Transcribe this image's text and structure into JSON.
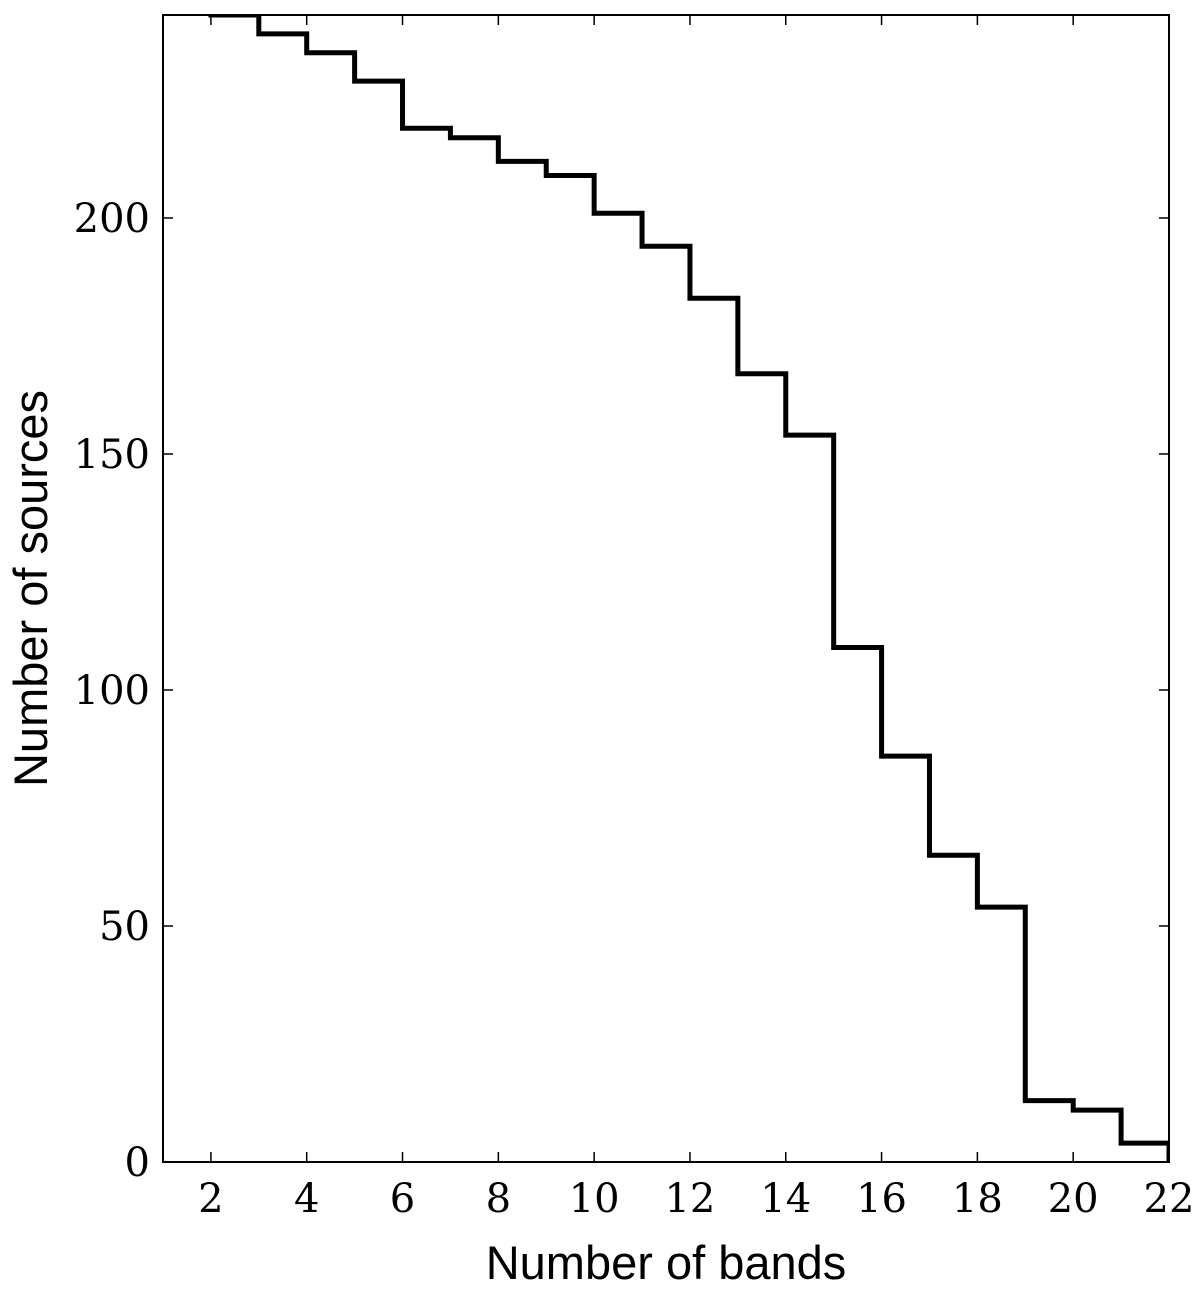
{
  "chart_data": {
    "type": "line",
    "style": "step",
    "title": "",
    "xlabel": "Number of bands",
    "ylabel": "Number of sources",
    "xlim": [
      1,
      22
    ],
    "ylim": [
      0,
      243
    ],
    "grid": false,
    "legend": "none",
    "line_color": "#000000",
    "x_ticks": [
      2,
      4,
      6,
      8,
      10,
      12,
      14,
      16,
      18,
      20,
      22
    ],
    "x_tick_labels": [
      "2",
      "4",
      "6",
      "8",
      "10",
      "12",
      "14",
      "16",
      "18",
      "20",
      "22"
    ],
    "y_ticks": [
      0,
      50,
      100,
      150,
      200
    ],
    "y_tick_labels": [
      "0",
      "50",
      "100",
      "150",
      "200"
    ],
    "bins": [
      {
        "x0": 1,
        "x1": 2,
        "value": 244
      },
      {
        "x0": 2,
        "x1": 3,
        "value": 243
      },
      {
        "x0": 3,
        "x1": 4,
        "value": 239
      },
      {
        "x0": 4,
        "x1": 5,
        "value": 235
      },
      {
        "x0": 5,
        "x1": 6,
        "value": 229
      },
      {
        "x0": 6,
        "x1": 7,
        "value": 219
      },
      {
        "x0": 7,
        "x1": 8,
        "value": 217
      },
      {
        "x0": 8,
        "x1": 9,
        "value": 212
      },
      {
        "x0": 9,
        "x1": 10,
        "value": 209
      },
      {
        "x0": 10,
        "x1": 11,
        "value": 201
      },
      {
        "x0": 11,
        "x1": 12,
        "value": 194
      },
      {
        "x0": 12,
        "x1": 13,
        "value": 183
      },
      {
        "x0": 13,
        "x1": 14,
        "value": 167
      },
      {
        "x0": 14,
        "x1": 15,
        "value": 154
      },
      {
        "x0": 15,
        "x1": 16,
        "value": 109
      },
      {
        "x0": 16,
        "x1": 17,
        "value": 86
      },
      {
        "x0": 17,
        "x1": 18,
        "value": 65
      },
      {
        "x0": 18,
        "x1": 19,
        "value": 54
      },
      {
        "x0": 19,
        "x1": 20,
        "value": 13
      },
      {
        "x0": 20,
        "x1": 21,
        "value": 11
      },
      {
        "x0": 21,
        "x1": 22,
        "value": 4
      }
    ]
  }
}
